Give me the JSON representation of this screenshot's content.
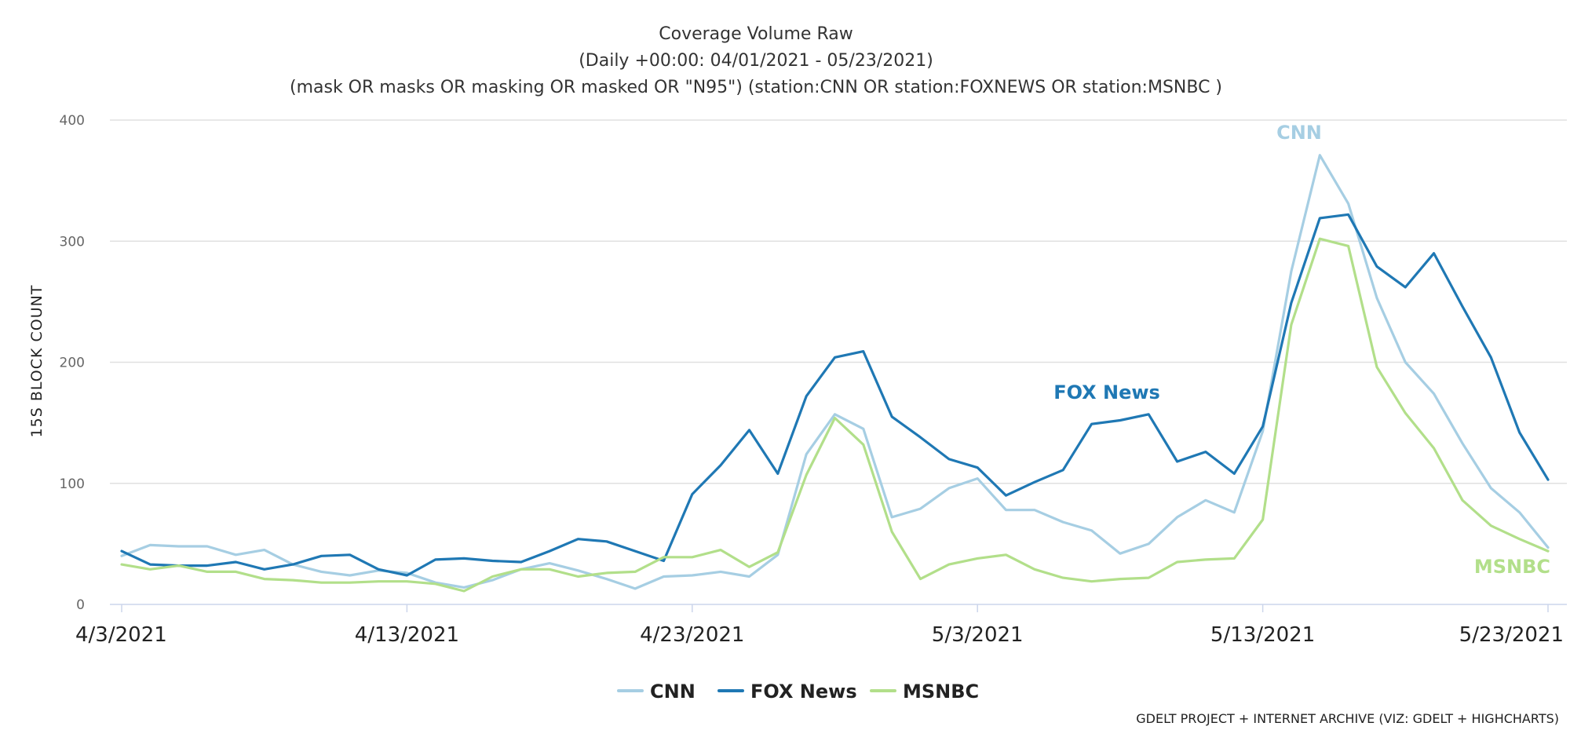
{
  "chart_data": {
    "type": "line",
    "title": "Coverage Volume Raw",
    "subtitle_lines": [
      "(Daily +00:00: 04/01/2021 - 05/23/2021)",
      "(mask OR masks OR masking OR masked OR \"N95\") (station:CNN OR station:FOXNEWS OR station:MSNBC )"
    ],
    "ylabel": "15S BLOCK COUNT",
    "xlabel": "",
    "ylim": [
      0,
      400
    ],
    "yticks": [
      0,
      100,
      200,
      300,
      400
    ],
    "x_start": "2021-04-03",
    "xticks": [
      {
        "date": "2021-04-03",
        "label": "4/3/2021"
      },
      {
        "date": "2021-04-13",
        "label": "4/13/2021"
      },
      {
        "date": "2021-04-23",
        "label": "4/23/2021"
      },
      {
        "date": "2021-05-03",
        "label": "5/3/2021"
      },
      {
        "date": "2021-05-13",
        "label": "5/13/2021"
      },
      {
        "date": "2021-05-23",
        "label": "5/23/2021"
      }
    ],
    "x": [
      "2021-04-03",
      "2021-04-04",
      "2021-04-05",
      "2021-04-06",
      "2021-04-07",
      "2021-04-08",
      "2021-04-09",
      "2021-04-10",
      "2021-04-11",
      "2021-04-12",
      "2021-04-13",
      "2021-04-14",
      "2021-04-15",
      "2021-04-16",
      "2021-04-17",
      "2021-04-18",
      "2021-04-19",
      "2021-04-20",
      "2021-04-21",
      "2021-04-22",
      "2021-04-23",
      "2021-04-24",
      "2021-04-25",
      "2021-04-26",
      "2021-04-27",
      "2021-04-28",
      "2021-04-29",
      "2021-04-30",
      "2021-05-01",
      "2021-05-02",
      "2021-05-03",
      "2021-05-04",
      "2021-05-05",
      "2021-05-06",
      "2021-05-07",
      "2021-05-08",
      "2021-05-09",
      "2021-05-10",
      "2021-05-11",
      "2021-05-12",
      "2021-05-13",
      "2021-05-14",
      "2021-05-15",
      "2021-05-16",
      "2021-05-17",
      "2021-05-18",
      "2021-05-19",
      "2021-05-20",
      "2021-05-21",
      "2021-05-22",
      "2021-05-23"
    ],
    "series": [
      {
        "name": "CNN",
        "color": "#a6cee3",
        "values": [
          40,
          49,
          48,
          48,
          41,
          45,
          33,
          27,
          24,
          28,
          26,
          18,
          14,
          20,
          29,
          34,
          28,
          21,
          13,
          23,
          24,
          27,
          23,
          41,
          124,
          157,
          145,
          72,
          79,
          96,
          104,
          78,
          78,
          68,
          61,
          42,
          50,
          72,
          86,
          76,
          143,
          275,
          371,
          331,
          253,
          200,
          174,
          133,
          96,
          76,
          47
        ]
      },
      {
        "name": "FOX News",
        "color": "#1f78b4",
        "values": [
          44,
          33,
          32,
          32,
          35,
          29,
          33,
          40,
          41,
          29,
          24,
          37,
          38,
          36,
          35,
          44,
          54,
          52,
          44,
          36,
          91,
          115,
          144,
          108,
          172,
          204,
          209,
          155,
          138,
          120,
          113,
          90,
          101,
          111,
          149,
          152,
          157,
          118,
          126,
          108,
          147,
          249,
          319,
          322,
          279,
          262,
          290,
          246,
          204,
          142,
          103
        ]
      },
      {
        "name": "MSNBC",
        "color": "#b2df8a",
        "values": [
          33,
          29,
          32,
          27,
          27,
          21,
          20,
          18,
          18,
          19,
          19,
          17,
          11,
          23,
          29,
          29,
          23,
          26,
          27,
          39,
          39,
          45,
          31,
          43,
          107,
          154,
          132,
          60,
          21,
          33,
          38,
          41,
          29,
          22,
          19,
          21,
          22,
          35,
          37,
          38,
          70,
          231,
          302,
          296,
          196,
          158,
          129,
          86,
          65,
          54,
          44
        ]
      }
    ],
    "annotations": [
      {
        "label": "CNN",
        "series": "CNN"
      },
      {
        "label": "FOX News",
        "series": "FOX News"
      },
      {
        "label": "MSNBC",
        "series": "MSNBC"
      }
    ],
    "legend": {
      "placement": "bottom-center",
      "items": [
        "CNN",
        "FOX News",
        "MSNBC"
      ]
    },
    "grid": true,
    "credit": "GDELT PROJECT + INTERNET ARCHIVE (VIZ: GDELT + HIGHCHARTS)"
  }
}
